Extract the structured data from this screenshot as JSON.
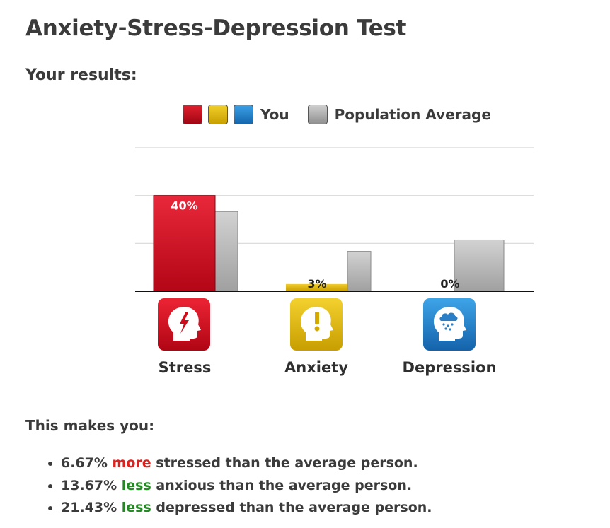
{
  "page": {
    "title": "Anxiety-Stress-Depression Test",
    "subtitle": "Your results:"
  },
  "legend": {
    "you_label": "You",
    "population_label": "Population Average",
    "you_colors": [
      "#d8101f",
      "#e2b80e",
      "#2586d2"
    ],
    "population_color": "#a8a8a8"
  },
  "chart_data": {
    "type": "bar",
    "categories": [
      "Stress",
      "Anxiety",
      "Depression"
    ],
    "series": [
      {
        "name": "You",
        "values": [
          40,
          3,
          0
        ],
        "labels": [
          "40%",
          "3%",
          "0%"
        ]
      },
      {
        "name": "Population Average",
        "values": [
          33.33,
          16.67,
          21.43
        ]
      }
    ],
    "ylim": [
      0,
      100
    ],
    "grid": true,
    "legend_position": "top-center",
    "icons": [
      "stress-head-icon",
      "anxiety-head-icon",
      "depression-head-icon"
    ]
  },
  "summary": {
    "heading": "This makes you:",
    "items": [
      {
        "value": "6.67%",
        "direction": "more",
        "rest": "stressed than the average person."
      },
      {
        "value": "13.67%",
        "direction": "less",
        "rest": "anxious than the average person."
      },
      {
        "value": "21.43%",
        "direction": "less",
        "rest": "depressed than the average person."
      }
    ]
  }
}
